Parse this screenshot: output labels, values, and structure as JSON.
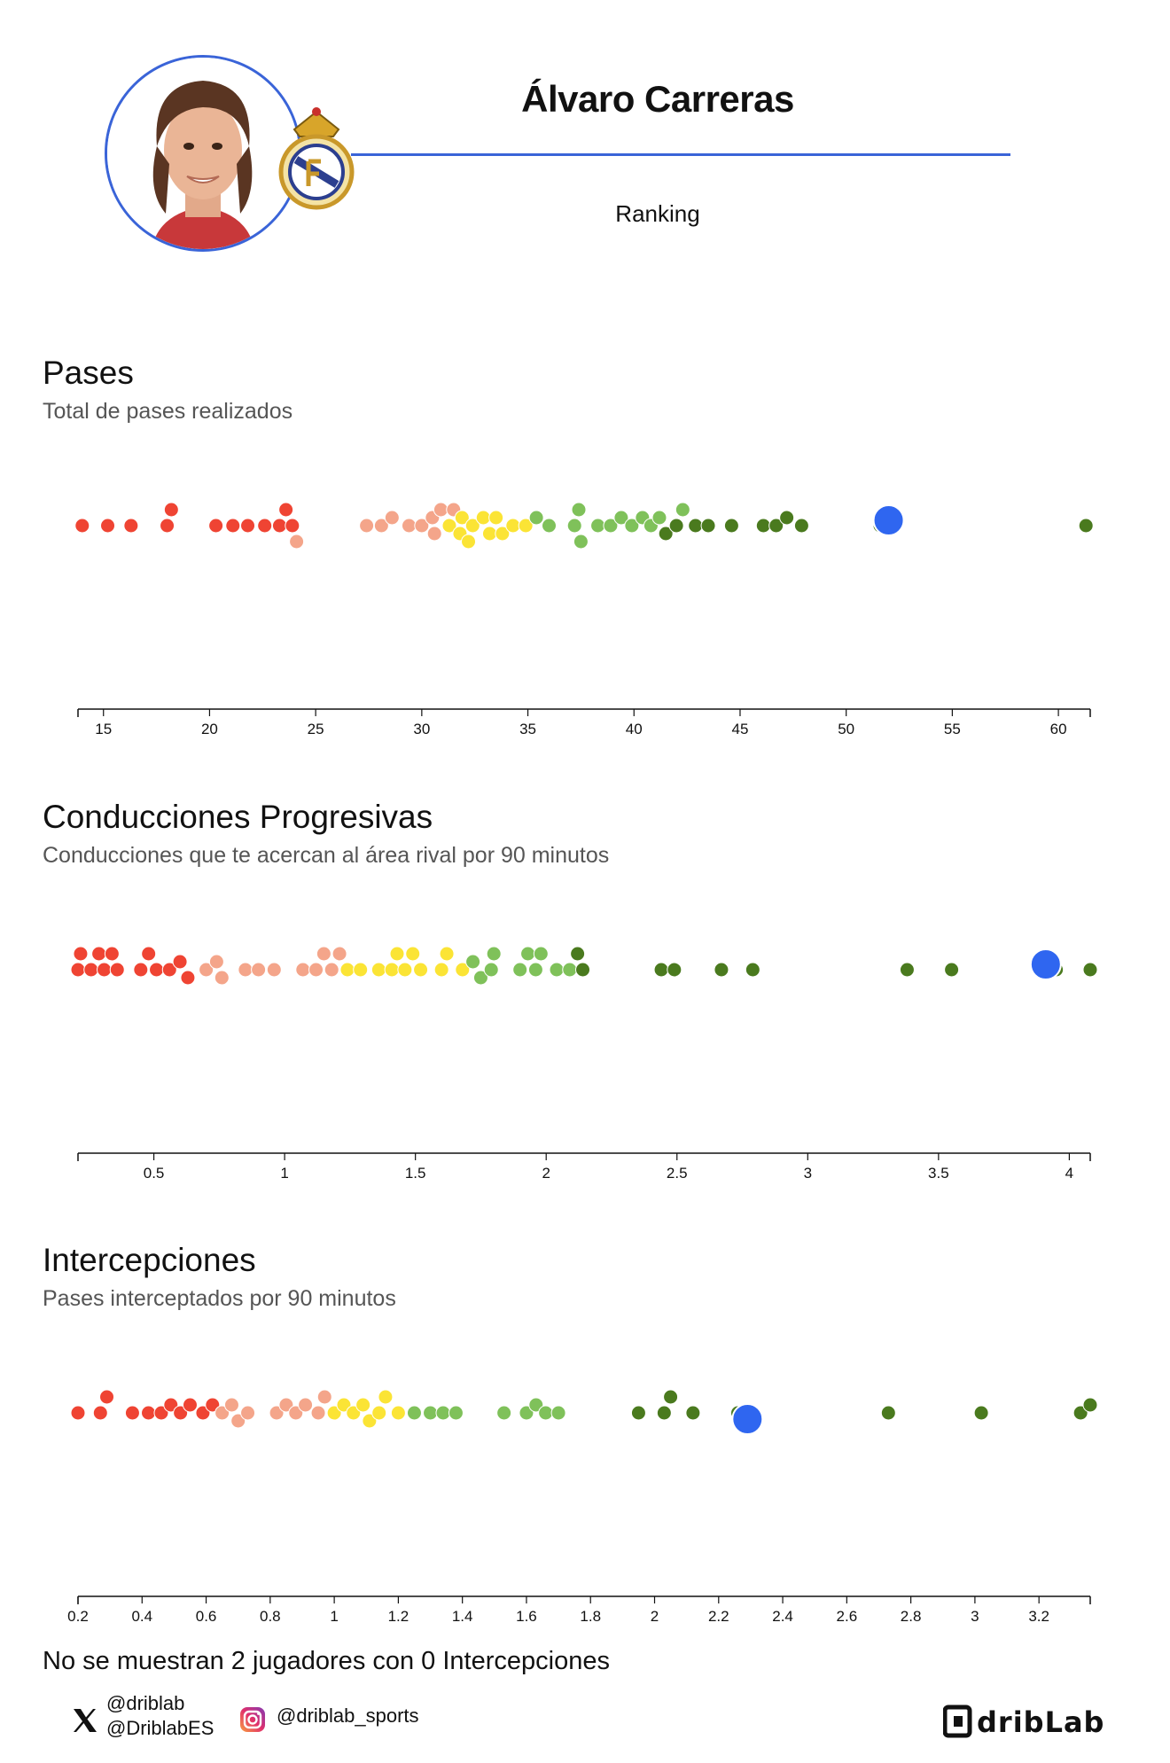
{
  "header": {
    "player_name": "Álvaro Carreras",
    "subtitle": "Ranking"
  },
  "colors": {
    "accent": "#3a64d8",
    "highlight_dot": "#2f66f0",
    "bins": [
      "#ef4433",
      "#f4a58a",
      "#fbe435",
      "#7fc15a",
      "#4a7a1e"
    ]
  },
  "chart_data": [
    {
      "type": "scatter",
      "title": "Pases",
      "subtitle": "Total de pases realizados",
      "xlim": [
        13.8,
        61.5
      ],
      "ticks": [
        15,
        20,
        25,
        30,
        35,
        40,
        45,
        50,
        55,
        60
      ],
      "tick_labels": [
        "15",
        "20",
        "25",
        "30",
        "35",
        "40",
        "45",
        "50",
        "55",
        "60"
      ],
      "highlight": 52.0,
      "points": [
        {
          "x": 14.0,
          "c": 0
        },
        {
          "x": 15.2,
          "c": 0
        },
        {
          "x": 16.3,
          "c": 0
        },
        {
          "x": 18.0,
          "c": 0
        },
        {
          "x": 18.2,
          "c": 0
        },
        {
          "x": 20.3,
          "c": 0
        },
        {
          "x": 21.1,
          "c": 0
        },
        {
          "x": 21.8,
          "c": 0
        },
        {
          "x": 22.6,
          "c": 0
        },
        {
          "x": 23.3,
          "c": 0
        },
        {
          "x": 23.6,
          "c": 0
        },
        {
          "x": 23.9,
          "c": 0
        },
        {
          "x": 24.1,
          "c": 1
        },
        {
          "x": 27.4,
          "c": 1
        },
        {
          "x": 28.1,
          "c": 1
        },
        {
          "x": 28.6,
          "c": 1
        },
        {
          "x": 29.4,
          "c": 1
        },
        {
          "x": 30.0,
          "c": 1
        },
        {
          "x": 30.5,
          "c": 1
        },
        {
          "x": 30.6,
          "c": 1
        },
        {
          "x": 30.9,
          "c": 1
        },
        {
          "x": 31.3,
          "c": 2
        },
        {
          "x": 31.5,
          "c": 1
        },
        {
          "x": 31.8,
          "c": 2
        },
        {
          "x": 31.9,
          "c": 2
        },
        {
          "x": 32.2,
          "c": 2
        },
        {
          "x": 32.4,
          "c": 2
        },
        {
          "x": 32.9,
          "c": 2
        },
        {
          "x": 33.2,
          "c": 2
        },
        {
          "x": 33.5,
          "c": 2
        },
        {
          "x": 33.8,
          "c": 2
        },
        {
          "x": 34.3,
          "c": 2
        },
        {
          "x": 34.9,
          "c": 2
        },
        {
          "x": 35.4,
          "c": 3
        },
        {
          "x": 36.0,
          "c": 3
        },
        {
          "x": 37.2,
          "c": 3
        },
        {
          "x": 37.4,
          "c": 3
        },
        {
          "x": 37.5,
          "c": 3
        },
        {
          "x": 38.3,
          "c": 3
        },
        {
          "x": 38.9,
          "c": 3
        },
        {
          "x": 39.4,
          "c": 3
        },
        {
          "x": 39.9,
          "c": 3
        },
        {
          "x": 40.4,
          "c": 3
        },
        {
          "x": 40.8,
          "c": 3
        },
        {
          "x": 41.2,
          "c": 3
        },
        {
          "x": 41.5,
          "c": 4
        },
        {
          "x": 42.0,
          "c": 4
        },
        {
          "x": 42.3,
          "c": 3
        },
        {
          "x": 42.9,
          "c": 4
        },
        {
          "x": 43.5,
          "c": 4
        },
        {
          "x": 44.6,
          "c": 4
        },
        {
          "x": 46.1,
          "c": 4
        },
        {
          "x": 46.7,
          "c": 4
        },
        {
          "x": 47.2,
          "c": 4
        },
        {
          "x": 47.9,
          "c": 4
        },
        {
          "x": 51.6,
          "c": 4
        },
        {
          "x": 61.3,
          "c": 4
        }
      ]
    },
    {
      "type": "scatter",
      "title": "Conducciones Progresivas",
      "subtitle": "Conducciones que te acercan al área rival por 90 minutos",
      "xlim": [
        0.21,
        4.08
      ],
      "ticks": [
        0.5,
        1,
        1.5,
        2,
        2.5,
        3,
        3.5,
        4
      ],
      "tick_labels": [
        "0.5",
        "1",
        "1.5",
        "2",
        "2.5",
        "3",
        "3.5",
        "4"
      ],
      "highlight": 3.91,
      "points": [
        {
          "x": 0.21,
          "c": 0
        },
        {
          "x": 0.22,
          "c": 0
        },
        {
          "x": 0.26,
          "c": 0
        },
        {
          "x": 0.29,
          "c": 0
        },
        {
          "x": 0.31,
          "c": 0
        },
        {
          "x": 0.34,
          "c": 0
        },
        {
          "x": 0.36,
          "c": 0
        },
        {
          "x": 0.45,
          "c": 0
        },
        {
          "x": 0.48,
          "c": 0
        },
        {
          "x": 0.51,
          "c": 0
        },
        {
          "x": 0.56,
          "c": 0
        },
        {
          "x": 0.6,
          "c": 0
        },
        {
          "x": 0.63,
          "c": 0
        },
        {
          "x": 0.7,
          "c": 1
        },
        {
          "x": 0.74,
          "c": 1
        },
        {
          "x": 0.76,
          "c": 1
        },
        {
          "x": 0.85,
          "c": 1
        },
        {
          "x": 0.9,
          "c": 1
        },
        {
          "x": 0.96,
          "c": 1
        },
        {
          "x": 1.07,
          "c": 1
        },
        {
          "x": 1.12,
          "c": 1
        },
        {
          "x": 1.15,
          "c": 1
        },
        {
          "x": 1.18,
          "c": 1
        },
        {
          "x": 1.21,
          "c": 1
        },
        {
          "x": 1.24,
          "c": 2
        },
        {
          "x": 1.29,
          "c": 2
        },
        {
          "x": 1.36,
          "c": 2
        },
        {
          "x": 1.41,
          "c": 2
        },
        {
          "x": 1.43,
          "c": 2
        },
        {
          "x": 1.46,
          "c": 2
        },
        {
          "x": 1.49,
          "c": 2
        },
        {
          "x": 1.52,
          "c": 2
        },
        {
          "x": 1.6,
          "c": 2
        },
        {
          "x": 1.62,
          "c": 2
        },
        {
          "x": 1.68,
          "c": 2
        },
        {
          "x": 1.72,
          "c": 3
        },
        {
          "x": 1.75,
          "c": 3
        },
        {
          "x": 1.79,
          "c": 3
        },
        {
          "x": 1.8,
          "c": 3
        },
        {
          "x": 1.9,
          "c": 3
        },
        {
          "x": 1.93,
          "c": 3
        },
        {
          "x": 1.96,
          "c": 3
        },
        {
          "x": 1.98,
          "c": 3
        },
        {
          "x": 2.04,
          "c": 3
        },
        {
          "x": 2.09,
          "c": 3
        },
        {
          "x": 2.12,
          "c": 4
        },
        {
          "x": 2.14,
          "c": 4
        },
        {
          "x": 2.44,
          "c": 4
        },
        {
          "x": 2.49,
          "c": 4
        },
        {
          "x": 2.67,
          "c": 4
        },
        {
          "x": 2.79,
          "c": 4
        },
        {
          "x": 3.38,
          "c": 4
        },
        {
          "x": 3.55,
          "c": 4
        },
        {
          "x": 3.95,
          "c": 4
        },
        {
          "x": 4.08,
          "c": 4
        }
      ]
    },
    {
      "type": "scatter",
      "title": "Intercepciones",
      "subtitle": "Pases interceptados por 90 minutos",
      "xlim": [
        0.2,
        3.36
      ],
      "ticks": [
        0.2,
        0.4,
        0.6,
        0.8,
        1,
        1.2,
        1.4,
        1.6,
        1.8,
        2,
        2.2,
        2.4,
        2.6,
        2.8,
        3,
        3.2
      ],
      "tick_labels": [
        "0.2",
        "0.4",
        "0.6",
        "0.8",
        "1",
        "1.2",
        "1.4",
        "1.6",
        "1.8",
        "2",
        "2.2",
        "2.4",
        "2.6",
        "2.8",
        "3",
        "3.2"
      ],
      "highlight": 2.29,
      "points": [
        {
          "x": 0.2,
          "c": 0
        },
        {
          "x": 0.27,
          "c": 0
        },
        {
          "x": 0.29,
          "c": 0
        },
        {
          "x": 0.37,
          "c": 0
        },
        {
          "x": 0.42,
          "c": 0
        },
        {
          "x": 0.46,
          "c": 0
        },
        {
          "x": 0.49,
          "c": 0
        },
        {
          "x": 0.52,
          "c": 0
        },
        {
          "x": 0.55,
          "c": 0
        },
        {
          "x": 0.59,
          "c": 0
        },
        {
          "x": 0.62,
          "c": 0
        },
        {
          "x": 0.65,
          "c": 1
        },
        {
          "x": 0.68,
          "c": 1
        },
        {
          "x": 0.7,
          "c": 1
        },
        {
          "x": 0.73,
          "c": 1
        },
        {
          "x": 0.82,
          "c": 1
        },
        {
          "x": 0.85,
          "c": 1
        },
        {
          "x": 0.88,
          "c": 1
        },
        {
          "x": 0.91,
          "c": 1
        },
        {
          "x": 0.95,
          "c": 1
        },
        {
          "x": 0.97,
          "c": 1
        },
        {
          "x": 1.0,
          "c": 2
        },
        {
          "x": 1.03,
          "c": 2
        },
        {
          "x": 1.06,
          "c": 2
        },
        {
          "x": 1.09,
          "c": 2
        },
        {
          "x": 1.11,
          "c": 2
        },
        {
          "x": 1.14,
          "c": 2
        },
        {
          "x": 1.16,
          "c": 2
        },
        {
          "x": 1.2,
          "c": 2
        },
        {
          "x": 1.25,
          "c": 3
        },
        {
          "x": 1.3,
          "c": 3
        },
        {
          "x": 1.34,
          "c": 3
        },
        {
          "x": 1.38,
          "c": 3
        },
        {
          "x": 1.53,
          "c": 3
        },
        {
          "x": 1.6,
          "c": 3
        },
        {
          "x": 1.63,
          "c": 3
        },
        {
          "x": 1.66,
          "c": 3
        },
        {
          "x": 1.7,
          "c": 3
        },
        {
          "x": 1.95,
          "c": 4
        },
        {
          "x": 2.03,
          "c": 4
        },
        {
          "x": 2.05,
          "c": 4
        },
        {
          "x": 2.12,
          "c": 4
        },
        {
          "x": 2.26,
          "c": 4
        },
        {
          "x": 2.31,
          "c": 4
        },
        {
          "x": 2.73,
          "c": 4
        },
        {
          "x": 3.02,
          "c": 4
        },
        {
          "x": 3.33,
          "c": 4
        },
        {
          "x": 3.36,
          "c": 4
        }
      ]
    }
  ],
  "note": "No se muestran 2 jugadores con 0 Intercepciones",
  "footer": {
    "twitter_handle_1": "@driblab",
    "twitter_handle_2": "@DriblabES",
    "instagram_handle": "@driblab_sports",
    "logo_text": "dribLab"
  }
}
